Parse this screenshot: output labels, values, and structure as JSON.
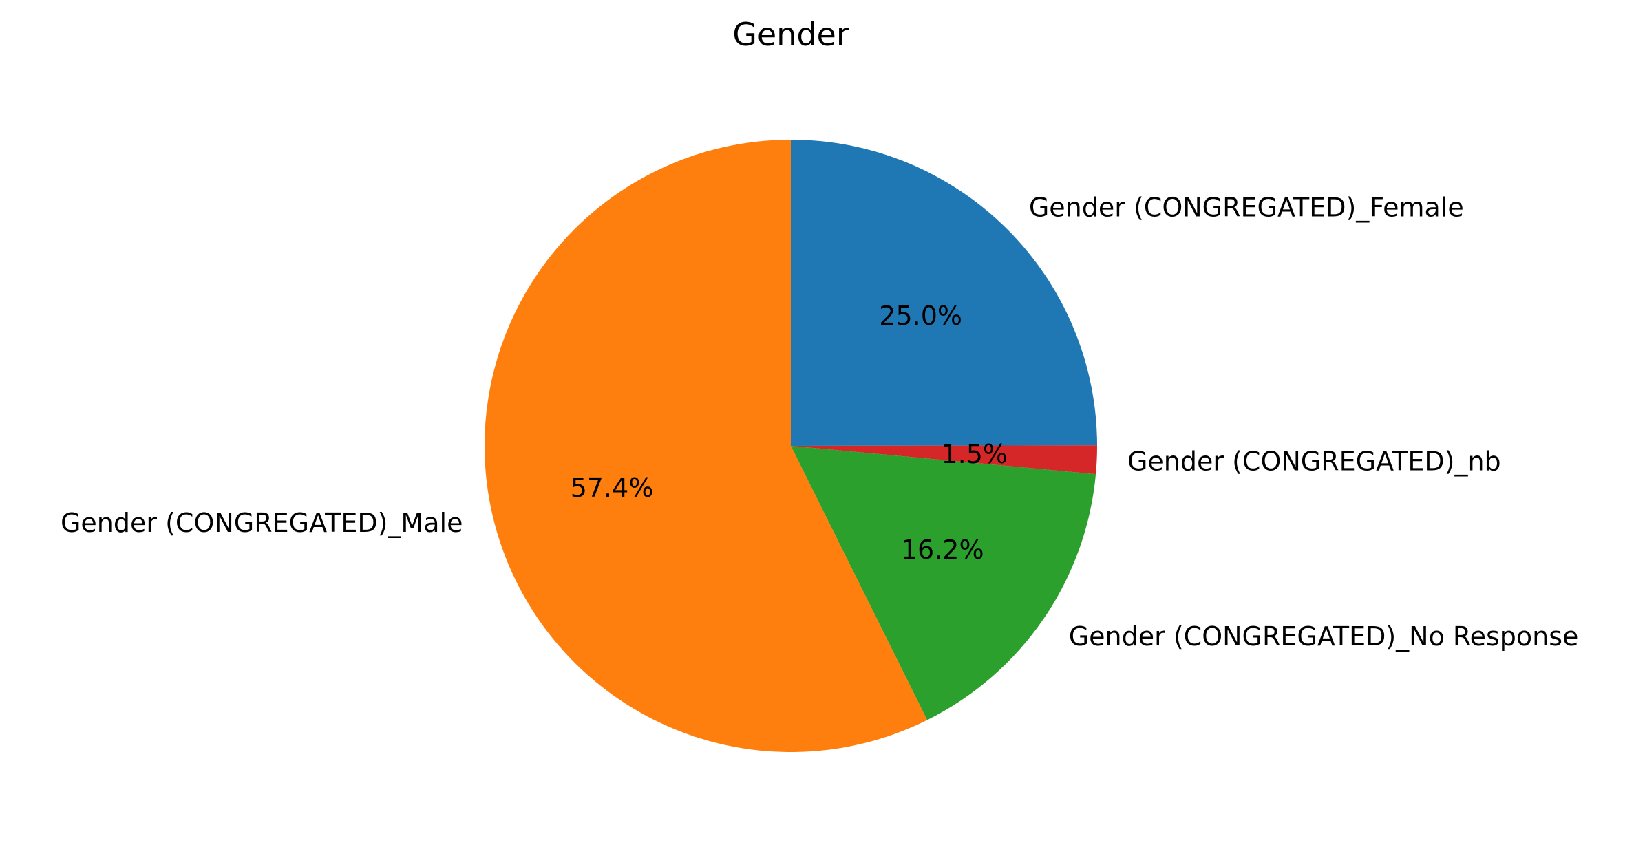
{
  "chart_data": {
    "type": "pie",
    "title": "Gender",
    "start_angle": 90,
    "direction": "clockwise",
    "slices": [
      {
        "label": "Gender (CONGREGATED)_Female",
        "value": 25.0,
        "pct_label": "25.0%",
        "color": "#1f77b4"
      },
      {
        "label": "Gender (CONGREGATED)_nb",
        "value": 1.5,
        "pct_label": "1.5%",
        "color": "#d62728"
      },
      {
        "label": "Gender (CONGREGATED)_No Response",
        "value": 16.2,
        "pct_label": "16.2%",
        "color": "#2ca02c"
      },
      {
        "label": "Gender (CONGREGATED)_Male",
        "value": 57.4,
        "pct_label": "57.4%",
        "color": "#ff7f0e"
      }
    ]
  }
}
